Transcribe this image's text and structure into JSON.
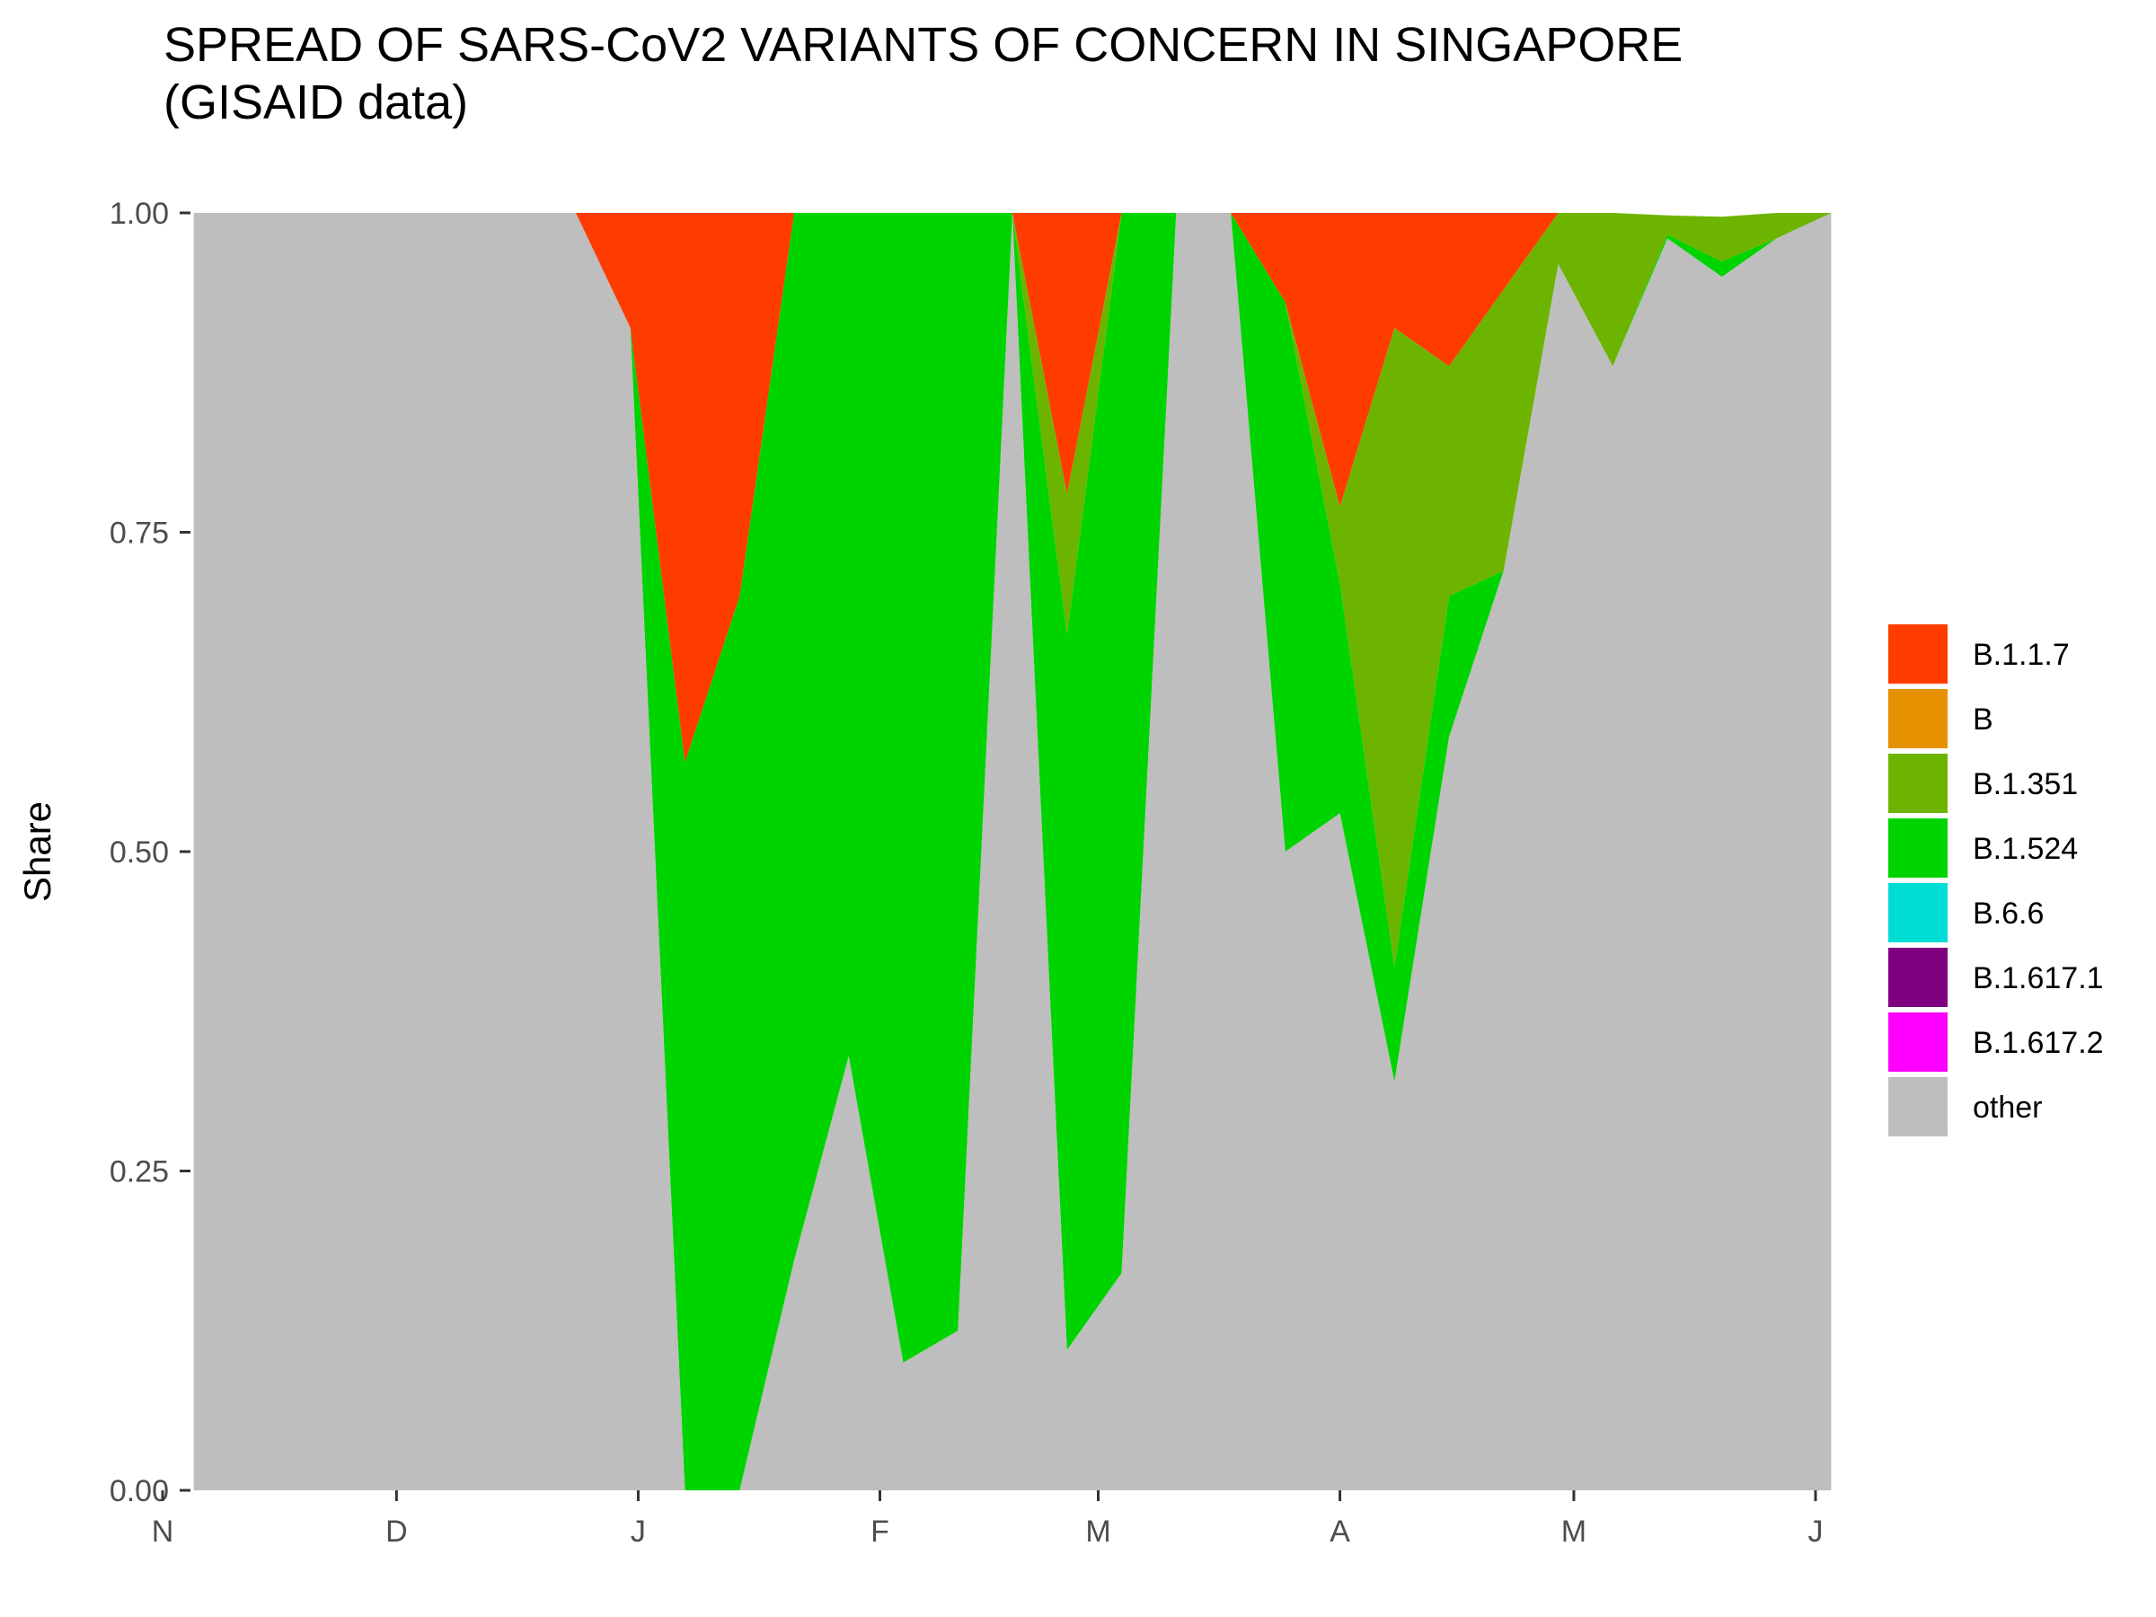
{
  "chart_data": {
    "type": "area",
    "title_line1": "SPREAD OF SARS-CoV2 VARIANTS OF CONCERN IN SINGAPORE",
    "title_line2": "(GISAID data)",
    "xlabel": "",
    "ylabel": "Share",
    "ylim": [
      0,
      1
    ],
    "yticks": [
      0,
      0.25,
      0.5,
      0.75,
      1
    ],
    "ytick_labels": [
      "0.00",
      "0.25",
      "0.50",
      "0.75",
      "1.00"
    ],
    "xlim": [
      "2020-11-01",
      "2021-06-01"
    ],
    "xticks": [
      {
        "date": "2020-11-01",
        "label": "N"
      },
      {
        "date": "2020-12-01",
        "label": "D"
      },
      {
        "date": "2021-01-01",
        "label": "J"
      },
      {
        "date": "2021-02-01",
        "label": "F"
      },
      {
        "date": "2021-03-01",
        "label": "M"
      },
      {
        "date": "2021-04-01",
        "label": "A"
      },
      {
        "date": "2021-05-01",
        "label": "M"
      },
      {
        "date": "2021-06-01",
        "label": "J"
      }
    ],
    "stack_order": "first series on top",
    "grid": false,
    "legend_position": "right",
    "x": [
      "2020-11-05",
      "2020-12-24",
      "2020-12-31",
      "2021-01-07",
      "2021-01-14",
      "2021-01-21",
      "2021-01-28",
      "2021-02-04",
      "2021-02-11",
      "2021-02-18",
      "2021-02-25",
      "2021-03-04",
      "2021-03-11",
      "2021-03-18",
      "2021-03-25",
      "2021-04-01",
      "2021-04-08",
      "2021-04-15",
      "2021-04-22",
      "2021-04-29",
      "2021-05-06",
      "2021-05-13",
      "2021-05-20",
      "2021-05-27",
      "2021-06-03"
    ],
    "series": [
      {
        "name": "B.1.1.7",
        "color": "#FF3C00",
        "values": [
          0,
          0,
          0.09,
          0.43,
          0.3,
          0,
          0,
          0,
          0,
          0,
          0.22,
          0,
          0,
          0,
          0.07,
          0.23,
          0.09,
          0.12,
          0.06,
          0,
          0,
          0,
          0,
          0,
          0
        ]
      },
      {
        "name": "B",
        "color": "#E69100",
        "values": [
          0,
          0,
          0,
          0,
          0,
          0,
          0,
          0,
          0,
          0,
          0,
          0,
          0,
          0,
          0,
          0,
          0,
          0,
          0,
          0,
          0,
          0,
          0,
          0,
          0
        ]
      },
      {
        "name": "B.1.351",
        "color": "#6DB400",
        "values": [
          0,
          0,
          0,
          0,
          0,
          0,
          0,
          0,
          0,
          0,
          0.11,
          0,
          0,
          0,
          0,
          0.06,
          0.5,
          0.18,
          0.22,
          0.04,
          0.12,
          0.015,
          0.035,
          0.02,
          0
        ]
      },
      {
        "name": "B.1.524",
        "color": "#00D400",
        "values": [
          0,
          0,
          0,
          0.57,
          0.7,
          0.82,
          0.66,
          0.9,
          0.875,
          0,
          0.56,
          0.83,
          0,
          0,
          0.43,
          0.18,
          0.09,
          0.11,
          0,
          0,
          0,
          0.003,
          0.012,
          0,
          0
        ]
      },
      {
        "name": "B.6.6",
        "color": "#00DDD5",
        "values": [
          0,
          0,
          0,
          0,
          0,
          0,
          0,
          0,
          0,
          0,
          0,
          0,
          0,
          0,
          0,
          0,
          0,
          0,
          0,
          0,
          0,
          0,
          0,
          0,
          0
        ]
      },
      {
        "name": "B.1.617.1",
        "color": "#7F007F",
        "values": [
          0,
          0,
          0,
          0,
          0,
          0,
          0,
          0,
          0,
          0,
          0,
          0,
          0,
          0,
          0,
          0,
          0,
          0,
          0,
          0,
          0,
          0,
          0,
          0,
          0
        ]
      },
      {
        "name": "B.1.617.2",
        "color": "#FF00FF",
        "values": [
          0,
          0,
          0,
          0,
          0,
          0,
          0,
          0,
          0,
          0,
          0,
          0,
          0,
          0,
          0,
          0,
          0,
          0,
          0,
          0,
          0,
          0,
          0,
          0,
          0
        ]
      },
      {
        "name": "other",
        "color": "#BEBEBE",
        "values": [
          1,
          1,
          0.91,
          0,
          0,
          0.18,
          0.34,
          0.1,
          0.125,
          1,
          0.11,
          0.17,
          1,
          1,
          0.5,
          0.53,
          0.32,
          0.59,
          0.72,
          0.96,
          0.88,
          0.98,
          0.95,
          0.98,
          1
        ]
      }
    ]
  }
}
